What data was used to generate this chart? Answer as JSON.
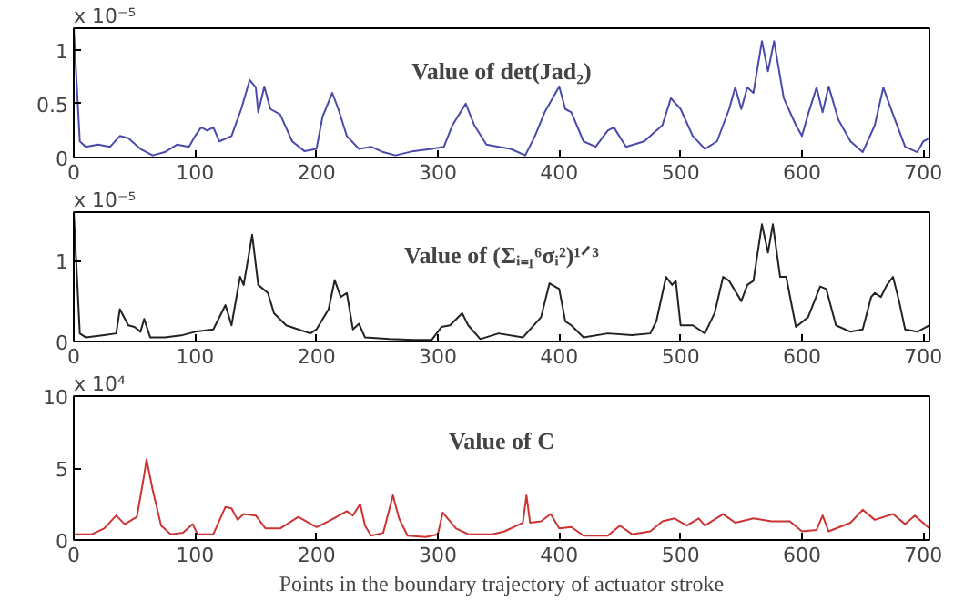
{
  "chart_data": [
    {
      "type": "line",
      "title": "Value of det(Jad₂)",
      "annotations": [
        "x 10⁻⁵"
      ],
      "xlim": [
        0,
        705
      ],
      "xticks": [
        0,
        100,
        200,
        300,
        400,
        500,
        600,
        700
      ],
      "ylim": [
        0,
        1.2
      ],
      "yticks": [
        0,
        0.5,
        1
      ],
      "series": [
        {
          "color": "#4a4aaa",
          "x": [
            0,
            5,
            10,
            20,
            30,
            38,
            45,
            55,
            65,
            75,
            85,
            95,
            100,
            105,
            110,
            115,
            120,
            130,
            138,
            145,
            150,
            152,
            157,
            162,
            170,
            180,
            190,
            200,
            205,
            213,
            218,
            225,
            235,
            245,
            255,
            265,
            280,
            295,
            305,
            312,
            323,
            330,
            340,
            350,
            360,
            372,
            380,
            388,
            400,
            405,
            410,
            420,
            430,
            440,
            445,
            455,
            470,
            485,
            492,
            500,
            510,
            520,
            530,
            540,
            545,
            550,
            555,
            560,
            567,
            572,
            577,
            585,
            595,
            600,
            605,
            612,
            617,
            622,
            630,
            640,
            650,
            660,
            667,
            675,
            685,
            695,
            700,
            705
          ],
          "values": [
            1.2,
            0.15,
            0.1,
            0.12,
            0.1,
            0.2,
            0.18,
            0.08,
            0.02,
            0.05,
            0.12,
            0.1,
            0.2,
            0.28,
            0.25,
            0.28,
            0.15,
            0.2,
            0.45,
            0.72,
            0.65,
            0.42,
            0.66,
            0.45,
            0.4,
            0.15,
            0.06,
            0.08,
            0.38,
            0.6,
            0.45,
            0.2,
            0.08,
            0.1,
            0.05,
            0.02,
            0.06,
            0.08,
            0.1,
            0.3,
            0.5,
            0.3,
            0.12,
            0.1,
            0.08,
            0.02,
            0.2,
            0.42,
            0.66,
            0.45,
            0.42,
            0.15,
            0.1,
            0.25,
            0.28,
            0.1,
            0.15,
            0.3,
            0.55,
            0.45,
            0.2,
            0.08,
            0.15,
            0.45,
            0.65,
            0.45,
            0.65,
            0.6,
            1.08,
            0.8,
            1.08,
            0.55,
            0.3,
            0.2,
            0.4,
            0.65,
            0.42,
            0.66,
            0.35,
            0.15,
            0.05,
            0.3,
            0.65,
            0.4,
            0.1,
            0.05,
            0.15,
            0.18
          ]
        }
      ]
    },
    {
      "type": "line",
      "title": "Value of (Σᵢ₌₁⁶σᵢ²)¹ᐟ³",
      "annotations": [
        "x 10⁻⁵"
      ],
      "xlim": [
        0,
        705
      ],
      "xticks": [
        0,
        100,
        200,
        300,
        400,
        500,
        600,
        700
      ],
      "ylim": [
        0,
        1.6
      ],
      "yticks": [
        0,
        1
      ],
      "series": [
        {
          "color": "#222222",
          "x": [
            0,
            5,
            10,
            25,
            35,
            38,
            45,
            50,
            55,
            58,
            63,
            75,
            90,
            100,
            115,
            125,
            130,
            137,
            140,
            147,
            152,
            160,
            165,
            175,
            185,
            195,
            200,
            210,
            215,
            220,
            225,
            230,
            235,
            240,
            260,
            280,
            295,
            303,
            310,
            320,
            325,
            335,
            350,
            370,
            385,
            392,
            400,
            405,
            410,
            420,
            440,
            460,
            475,
            480,
            488,
            493,
            496,
            500,
            510,
            520,
            528,
            535,
            540,
            550,
            555,
            560,
            567,
            572,
            576,
            582,
            587,
            595,
            605,
            615,
            620,
            628,
            640,
            650,
            657,
            660,
            665,
            670,
            675,
            680,
            685,
            695,
            705
          ],
          "values": [
            1.6,
            0.1,
            0.05,
            0.08,
            0.1,
            0.4,
            0.2,
            0.18,
            0.12,
            0.28,
            0.05,
            0.05,
            0.08,
            0.12,
            0.15,
            0.45,
            0.2,
            0.8,
            0.7,
            1.32,
            0.7,
            0.6,
            0.35,
            0.2,
            0.15,
            0.1,
            0.15,
            0.4,
            0.76,
            0.55,
            0.6,
            0.15,
            0.22,
            0.05,
            0.03,
            0.02,
            0.02,
            0.18,
            0.2,
            0.35,
            0.2,
            0.03,
            0.1,
            0.05,
            0.3,
            0.72,
            0.65,
            0.25,
            0.2,
            0.05,
            0.1,
            0.08,
            0.1,
            0.25,
            0.8,
            0.7,
            0.75,
            0.2,
            0.2,
            0.1,
            0.35,
            0.8,
            0.75,
            0.5,
            0.7,
            0.75,
            1.45,
            1.1,
            1.45,
            0.8,
            0.8,
            0.18,
            0.3,
            0.68,
            0.65,
            0.2,
            0.12,
            0.15,
            0.55,
            0.6,
            0.55,
            0.7,
            0.8,
            0.5,
            0.15,
            0.12,
            0.2
          ]
        }
      ]
    },
    {
      "type": "line",
      "title": "Value of C",
      "xlabel": "Points in the boundary trajectory of actuator stroke",
      "annotations": [
        "x 10⁴"
      ],
      "xlim": [
        0,
        705
      ],
      "xticks": [
        0,
        100,
        200,
        300,
        400,
        500,
        600,
        700
      ],
      "ylim": [
        0,
        10
      ],
      "yticks": [
        0,
        5,
        10
      ],
      "series": [
        {
          "color": "#cc3333",
          "x": [
            0,
            15,
            25,
            35,
            42,
            52,
            58,
            60,
            65,
            72,
            80,
            90,
            98,
            102,
            115,
            125,
            130,
            135,
            140,
            150,
            158,
            170,
            185,
            200,
            210,
            225,
            230,
            236,
            240,
            245,
            255,
            263,
            268,
            275,
            290,
            300,
            304,
            315,
            325,
            345,
            355,
            370,
            373,
            376,
            385,
            393,
            400,
            410,
            420,
            440,
            450,
            460,
            475,
            485,
            495,
            505,
            515,
            520,
            535,
            545,
            550,
            560,
            575,
            590,
            600,
            612,
            617,
            622,
            640,
            650,
            660,
            675,
            685,
            693,
            705
          ],
          "values": [
            0.4,
            0.4,
            0.8,
            1.7,
            1.1,
            1.6,
            4.5,
            5.6,
            3.5,
            1.0,
            0.4,
            0.5,
            1.1,
            0.4,
            0.4,
            2.3,
            2.2,
            1.4,
            1.8,
            1.7,
            0.8,
            0.8,
            1.6,
            0.9,
            1.3,
            2.0,
            1.7,
            2.5,
            1.0,
            0.3,
            0.5,
            3.1,
            1.5,
            0.3,
            0.2,
            0.4,
            1.9,
            0.8,
            0.4,
            0.4,
            0.6,
            1.2,
            3.1,
            1.2,
            1.3,
            1.8,
            0.8,
            0.9,
            0.3,
            0.3,
            1.0,
            0.4,
            0.6,
            1.3,
            1.5,
            1.0,
            1.5,
            1.0,
            1.8,
            1.2,
            1.3,
            1.5,
            1.3,
            1.3,
            0.6,
            0.7,
            1.7,
            0.6,
            1.2,
            2.1,
            1.4,
            1.8,
            1.1,
            1.7,
            0.8
          ]
        }
      ]
    }
  ]
}
